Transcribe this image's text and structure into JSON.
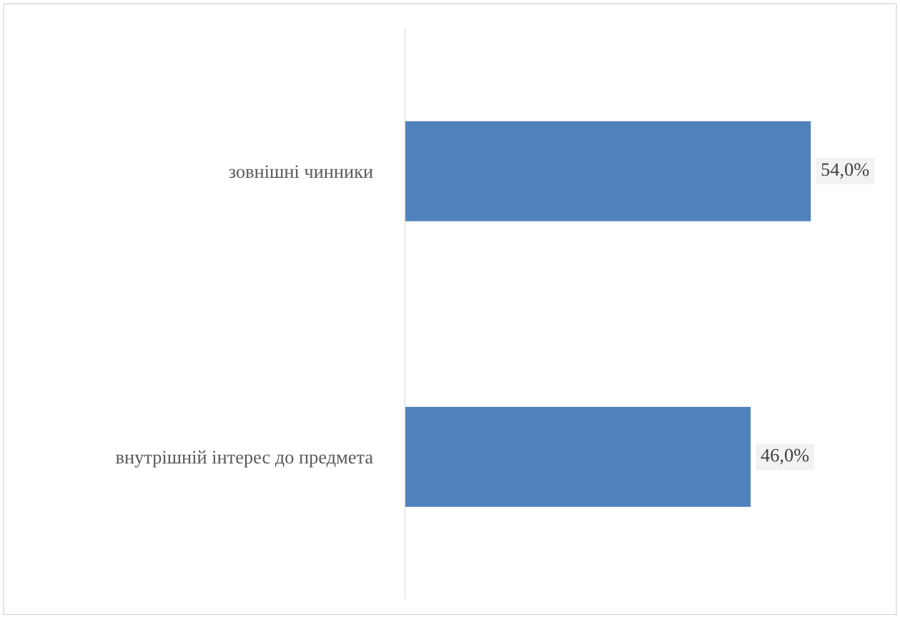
{
  "chart_data": {
    "type": "bar",
    "orientation": "horizontal",
    "categories": [
      "зовнішні чинники",
      "внутрішній інтерес до предмета"
    ],
    "values": [
      54.0,
      46.0
    ],
    "value_labels": [
      "54,0%",
      "46,0%"
    ],
    "color": "#4f81bd",
    "tick_labels": "y",
    "grid": false,
    "legend": false
  }
}
